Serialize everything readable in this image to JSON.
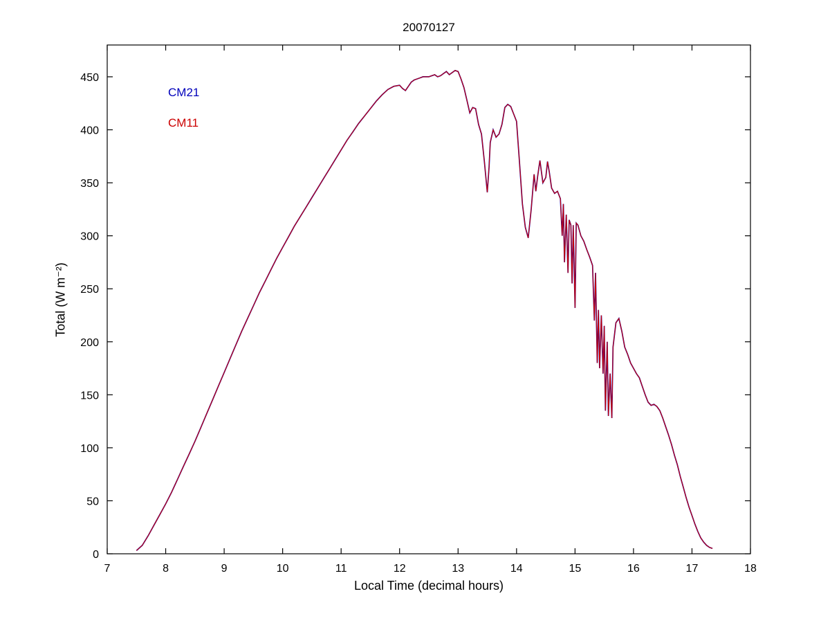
{
  "chart_data": {
    "type": "line",
    "title": "20070127",
    "xlabel": "Local Time (decimal hours)",
    "ylabel": "Total (W m⁻²)",
    "xlim": [
      7,
      18
    ],
    "ylim": [
      0,
      480
    ],
    "xticks": [
      7,
      8,
      9,
      10,
      11,
      12,
      13,
      14,
      15,
      16,
      17,
      18
    ],
    "yticks": [
      0,
      50,
      100,
      150,
      200,
      250,
      300,
      350,
      400,
      450
    ],
    "grid": false,
    "legend_position": "upper-left-text-annotations",
    "note": "CM21 and CM11 series overlap almost exactly; shared points below used for both curves.",
    "points": [
      [
        7.5,
        3
      ],
      [
        7.6,
        8
      ],
      [
        7.7,
        17
      ],
      [
        7.8,
        27
      ],
      [
        7.9,
        37
      ],
      [
        8.0,
        47
      ],
      [
        8.1,
        58
      ],
      [
        8.2,
        70
      ],
      [
        8.3,
        82
      ],
      [
        8.4,
        94
      ],
      [
        8.5,
        106
      ],
      [
        8.6,
        119
      ],
      [
        8.7,
        132
      ],
      [
        8.8,
        145
      ],
      [
        8.9,
        158
      ],
      [
        9.0,
        171
      ],
      [
        9.1,
        184
      ],
      [
        9.2,
        197
      ],
      [
        9.3,
        210
      ],
      [
        9.4,
        222
      ],
      [
        9.5,
        234
      ],
      [
        9.6,
        246
      ],
      [
        9.7,
        257
      ],
      [
        9.8,
        268
      ],
      [
        9.9,
        279
      ],
      [
        10.0,
        289
      ],
      [
        10.1,
        299
      ],
      [
        10.2,
        309
      ],
      [
        10.3,
        318
      ],
      [
        10.4,
        327
      ],
      [
        10.5,
        336
      ],
      [
        10.6,
        345
      ],
      [
        10.7,
        354
      ],
      [
        10.8,
        363
      ],
      [
        10.9,
        372
      ],
      [
        11.0,
        381
      ],
      [
        11.1,
        390
      ],
      [
        11.2,
        398
      ],
      [
        11.3,
        406
      ],
      [
        11.4,
        413
      ],
      [
        11.5,
        420
      ],
      [
        11.6,
        427
      ],
      [
        11.7,
        433
      ],
      [
        11.8,
        438
      ],
      [
        11.9,
        441
      ],
      [
        12.0,
        442
      ],
      [
        12.05,
        439
      ],
      [
        12.1,
        437
      ],
      [
        12.15,
        441
      ],
      [
        12.2,
        445
      ],
      [
        12.25,
        447
      ],
      [
        12.3,
        448
      ],
      [
        12.35,
        449
      ],
      [
        12.4,
        450
      ],
      [
        12.45,
        450
      ],
      [
        12.5,
        450
      ],
      [
        12.55,
        451
      ],
      [
        12.6,
        452
      ],
      [
        12.65,
        450
      ],
      [
        12.7,
        451
      ],
      [
        12.75,
        453
      ],
      [
        12.8,
        455
      ],
      [
        12.85,
        452
      ],
      [
        12.9,
        454
      ],
      [
        12.95,
        456
      ],
      [
        13.0,
        455
      ],
      [
        13.05,
        448
      ],
      [
        13.1,
        440
      ],
      [
        13.15,
        428
      ],
      [
        13.2,
        416
      ],
      [
        13.25,
        421
      ],
      [
        13.3,
        420
      ],
      [
        13.35,
        405
      ],
      [
        13.4,
        396
      ],
      [
        13.45,
        370
      ],
      [
        13.5,
        341
      ],
      [
        13.53,
        365
      ],
      [
        13.55,
        388
      ],
      [
        13.6,
        400
      ],
      [
        13.65,
        393
      ],
      [
        13.7,
        396
      ],
      [
        13.75,
        405
      ],
      [
        13.8,
        421
      ],
      [
        13.85,
        424
      ],
      [
        13.9,
        422
      ],
      [
        13.95,
        415
      ],
      [
        14.0,
        408
      ],
      [
        14.05,
        370
      ],
      [
        14.1,
        330
      ],
      [
        14.15,
        308
      ],
      [
        14.2,
        298
      ],
      [
        14.25,
        325
      ],
      [
        14.3,
        358
      ],
      [
        14.33,
        342
      ],
      [
        14.36,
        356
      ],
      [
        14.4,
        371
      ],
      [
        14.45,
        350
      ],
      [
        14.5,
        355
      ],
      [
        14.53,
        370
      ],
      [
        14.56,
        360
      ],
      [
        14.6,
        345
      ],
      [
        14.65,
        340
      ],
      [
        14.7,
        342
      ],
      [
        14.75,
        335
      ],
      [
        14.78,
        300
      ],
      [
        14.8,
        330
      ],
      [
        14.82,
        275
      ],
      [
        14.85,
        320
      ],
      [
        14.88,
        265
      ],
      [
        14.9,
        315
      ],
      [
        14.93,
        310
      ],
      [
        14.95,
        255
      ],
      [
        14.97,
        310
      ],
      [
        15.0,
        232
      ],
      [
        15.02,
        312
      ],
      [
        15.05,
        310
      ],
      [
        15.1,
        300
      ],
      [
        15.15,
        295
      ],
      [
        15.2,
        287
      ],
      [
        15.25,
        280
      ],
      [
        15.3,
        272
      ],
      [
        15.33,
        220
      ],
      [
        15.35,
        265
      ],
      [
        15.38,
        180
      ],
      [
        15.4,
        230
      ],
      [
        15.42,
        175
      ],
      [
        15.45,
        225
      ],
      [
        15.48,
        170
      ],
      [
        15.5,
        215
      ],
      [
        15.52,
        135
      ],
      [
        15.55,
        200
      ],
      [
        15.57,
        130
      ],
      [
        15.6,
        170
      ],
      [
        15.63,
        128
      ],
      [
        15.65,
        195
      ],
      [
        15.7,
        218
      ],
      [
        15.75,
        222
      ],
      [
        15.8,
        210
      ],
      [
        15.85,
        195
      ],
      [
        15.9,
        188
      ],
      [
        15.95,
        180
      ],
      [
        16.0,
        175
      ],
      [
        16.05,
        170
      ],
      [
        16.1,
        166
      ],
      [
        16.15,
        158
      ],
      [
        16.2,
        150
      ],
      [
        16.25,
        143
      ],
      [
        16.3,
        140
      ],
      [
        16.35,
        141
      ],
      [
        16.4,
        139
      ],
      [
        16.45,
        135
      ],
      [
        16.5,
        128
      ],
      [
        16.55,
        120
      ],
      [
        16.6,
        112
      ],
      [
        16.65,
        103
      ],
      [
        16.7,
        93
      ],
      [
        16.75,
        84
      ],
      [
        16.8,
        73
      ],
      [
        16.85,
        63
      ],
      [
        16.9,
        53
      ],
      [
        16.95,
        44
      ],
      [
        17.0,
        36
      ],
      [
        17.05,
        28
      ],
      [
        17.1,
        21
      ],
      [
        17.15,
        15
      ],
      [
        17.2,
        11
      ],
      [
        17.25,
        8
      ],
      [
        17.3,
        6
      ],
      [
        17.35,
        5
      ]
    ],
    "series": [
      {
        "name": "CM21",
        "color": "#0000bb"
      },
      {
        "name": "CM11",
        "color": "#cc0000"
      }
    ]
  }
}
